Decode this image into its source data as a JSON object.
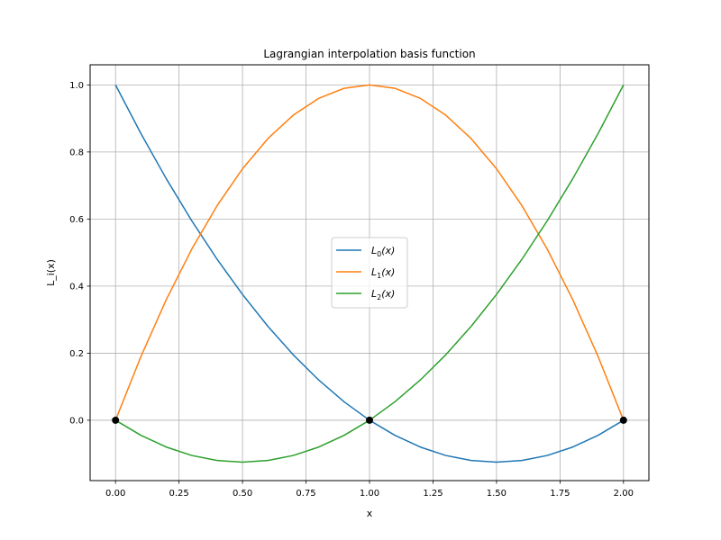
{
  "chart_data": {
    "type": "line",
    "title": "Lagrangian interpolation basis function",
    "xlabel": "x",
    "ylabel": "L_i(x)",
    "xlim": [
      -0.1,
      2.1
    ],
    "ylim": [
      -0.18,
      1.06
    ],
    "xticks": [
      "0.00",
      "0.25",
      "0.50",
      "0.75",
      "1.00",
      "1.25",
      "1.50",
      "1.75",
      "2.00"
    ],
    "yticks": [
      "0.0",
      "0.2",
      "0.4",
      "0.6",
      "0.8",
      "1.0"
    ],
    "grid": true,
    "legend_position": "center",
    "x": [
      0.0,
      0.1,
      0.2,
      0.3,
      0.4,
      0.5,
      0.6,
      0.7,
      0.8,
      0.9,
      1.0,
      1.1,
      1.2,
      1.3,
      1.4,
      1.5,
      1.6,
      1.7,
      1.8,
      1.9,
      2.0
    ],
    "series": [
      {
        "name": "L_0(x)",
        "legend_base": "L",
        "legend_sub": "0",
        "legend_tail": "(x)",
        "color": "#1f77b4",
        "values": [
          1.0,
          0.855,
          0.72,
          0.595,
          0.48,
          0.375,
          0.28,
          0.195,
          0.12,
          0.055,
          0.0,
          -0.045,
          -0.08,
          -0.105,
          -0.12,
          -0.125,
          -0.12,
          -0.105,
          -0.08,
          -0.045,
          0.0
        ]
      },
      {
        "name": "L_1(x)",
        "legend_base": "L",
        "legend_sub": "1",
        "legend_tail": "(x)",
        "color": "#ff7f0e",
        "values": [
          0.0,
          0.19,
          0.36,
          0.51,
          0.64,
          0.75,
          0.84,
          0.91,
          0.96,
          0.99,
          1.0,
          0.99,
          0.96,
          0.91,
          0.84,
          0.75,
          0.64,
          0.51,
          0.36,
          0.19,
          0.0
        ]
      },
      {
        "name": "L_2(x)",
        "legend_base": "L",
        "legend_sub": "2",
        "legend_tail": "(x)",
        "color": "#2ca02c",
        "values": [
          0.0,
          -0.045,
          -0.08,
          -0.105,
          -0.12,
          -0.125,
          -0.12,
          -0.105,
          -0.08,
          -0.045,
          0.0,
          0.055,
          0.12,
          0.195,
          0.28,
          0.375,
          0.48,
          0.595,
          0.72,
          0.855,
          1.0
        ]
      }
    ],
    "nodes": [
      {
        "x": 0.0,
        "y": 0.0
      },
      {
        "x": 1.0,
        "y": 0.0
      },
      {
        "x": 2.0,
        "y": 0.0
      }
    ],
    "node_color": "#000000"
  }
}
